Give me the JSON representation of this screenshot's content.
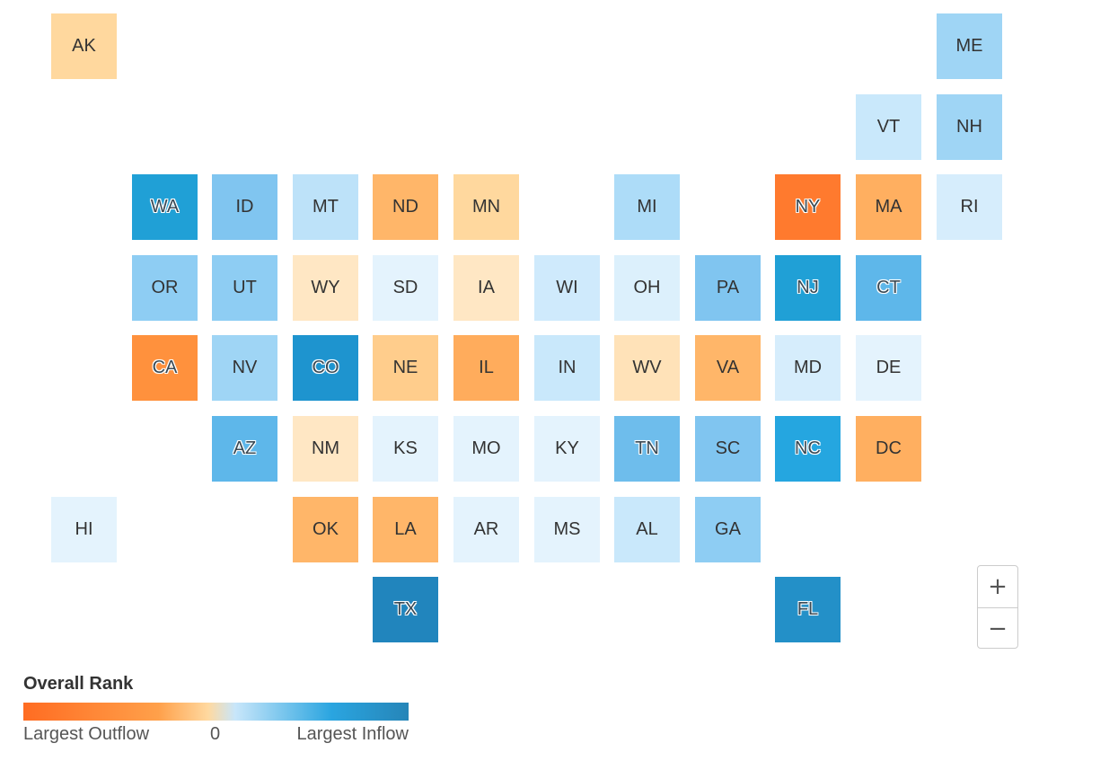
{
  "legend": {
    "title": "Overall Rank",
    "left_label": "Largest Outflow",
    "mid_label": "0",
    "right_label": "Largest Inflow",
    "gradient_colors": [
      "#ff6c22",
      "#ffa04a",
      "#ffd9a0",
      "#c8e6fa",
      "#2aa5e0",
      "#2685b8"
    ]
  },
  "zoom": {
    "in_label": "+",
    "out_label": "−"
  },
  "states": [
    {
      "abbr": "AK",
      "row": 0,
      "col": 0,
      "color": "#ffd89e",
      "dark": false
    },
    {
      "abbr": "ME",
      "row": 0,
      "col": 11,
      "color": "#9fd5f5",
      "dark": false
    },
    {
      "abbr": "VT",
      "row": 1,
      "col": 10,
      "color": "#c9e8fb",
      "dark": false
    },
    {
      "abbr": "NH",
      "row": 1,
      "col": 11,
      "color": "#9fd5f5",
      "dark": false
    },
    {
      "abbr": "WA",
      "row": 2,
      "col": 1,
      "color": "#20a0d6",
      "dark": true
    },
    {
      "abbr": "ID",
      "row": 2,
      "col": 2,
      "color": "#80c5f0",
      "dark": false
    },
    {
      "abbr": "MT",
      "row": 2,
      "col": 3,
      "color": "#bde2f9",
      "dark": false
    },
    {
      "abbr": "ND",
      "row": 2,
      "col": 4,
      "color": "#ffb669",
      "dark": false
    },
    {
      "abbr": "MN",
      "row": 2,
      "col": 5,
      "color": "#ffd89e",
      "dark": false
    },
    {
      "abbr": "MI",
      "row": 2,
      "col": 7,
      "color": "#addcf8",
      "dark": false
    },
    {
      "abbr": "NY",
      "row": 2,
      "col": 9,
      "color": "#ff7a2e",
      "dark": true
    },
    {
      "abbr": "MA",
      "row": 2,
      "col": 10,
      "color": "#ffaf60",
      "dark": false
    },
    {
      "abbr": "RI",
      "row": 2,
      "col": 11,
      "color": "#d6edfc",
      "dark": false
    },
    {
      "abbr": "OR",
      "row": 3,
      "col": 1,
      "color": "#8ecdf3",
      "dark": false
    },
    {
      "abbr": "UT",
      "row": 3,
      "col": 2,
      "color": "#8ecdf3",
      "dark": false
    },
    {
      "abbr": "WY",
      "row": 3,
      "col": 3,
      "color": "#ffe7c4",
      "dark": false
    },
    {
      "abbr": "SD",
      "row": 3,
      "col": 4,
      "color": "#e4f3fd",
      "dark": false
    },
    {
      "abbr": "IA",
      "row": 3,
      "col": 5,
      "color": "#ffe7c4",
      "dark": false
    },
    {
      "abbr": "WI",
      "row": 3,
      "col": 6,
      "color": "#cfeafc",
      "dark": false
    },
    {
      "abbr": "OH",
      "row": 3,
      "col": 7,
      "color": "#dcf0fc",
      "dark": false
    },
    {
      "abbr": "PA",
      "row": 3,
      "col": 8,
      "color": "#80c5f0",
      "dark": false
    },
    {
      "abbr": "NJ",
      "row": 3,
      "col": 9,
      "color": "#20a0d6",
      "dark": true
    },
    {
      "abbr": "CT",
      "row": 3,
      "col": 10,
      "color": "#5eb7ea",
      "dark": true
    },
    {
      "abbr": "CA",
      "row": 4,
      "col": 1,
      "color": "#ff913d",
      "dark": true
    },
    {
      "abbr": "NV",
      "row": 4,
      "col": 2,
      "color": "#9fd5f5",
      "dark": false
    },
    {
      "abbr": "CO",
      "row": 4,
      "col": 3,
      "color": "#1e94cf",
      "dark": true
    },
    {
      "abbr": "NE",
      "row": 4,
      "col": 4,
      "color": "#ffcd8c",
      "dark": false
    },
    {
      "abbr": "IL",
      "row": 4,
      "col": 5,
      "color": "#ffac5c",
      "dark": false
    },
    {
      "abbr": "IN",
      "row": 4,
      "col": 6,
      "color": "#c9e8fb",
      "dark": false
    },
    {
      "abbr": "WV",
      "row": 4,
      "col": 7,
      "color": "#ffe2b8",
      "dark": false
    },
    {
      "abbr": "VA",
      "row": 4,
      "col": 8,
      "color": "#ffb669",
      "dark": false
    },
    {
      "abbr": "MD",
      "row": 4,
      "col": 9,
      "color": "#d6edfc",
      "dark": false
    },
    {
      "abbr": "DE",
      "row": 4,
      "col": 10,
      "color": "#e4f3fd",
      "dark": false
    },
    {
      "abbr": "AZ",
      "row": 5,
      "col": 2,
      "color": "#5eb7ea",
      "dark": true
    },
    {
      "abbr": "NM",
      "row": 5,
      "col": 3,
      "color": "#ffe7c4",
      "dark": false
    },
    {
      "abbr": "KS",
      "row": 5,
      "col": 4,
      "color": "#e4f3fd",
      "dark": false
    },
    {
      "abbr": "MO",
      "row": 5,
      "col": 5,
      "color": "#e4f3fd",
      "dark": false
    },
    {
      "abbr": "KY",
      "row": 5,
      "col": 6,
      "color": "#e4f3fd",
      "dark": false
    },
    {
      "abbr": "TN",
      "row": 5,
      "col": 7,
      "color": "#6ebdec",
      "dark": true
    },
    {
      "abbr": "SC",
      "row": 5,
      "col": 8,
      "color": "#80c5f0",
      "dark": false
    },
    {
      "abbr": "NC",
      "row": 5,
      "col": 9,
      "color": "#25a6e0",
      "dark": true
    },
    {
      "abbr": "DC",
      "row": 5,
      "col": 10,
      "color": "#ffaf60",
      "dark": false
    },
    {
      "abbr": "HI",
      "row": 6,
      "col": 0,
      "color": "#e4f3fd",
      "dark": false
    },
    {
      "abbr": "OK",
      "row": 6,
      "col": 3,
      "color": "#ffb669",
      "dark": false
    },
    {
      "abbr": "LA",
      "row": 6,
      "col": 4,
      "color": "#ffb669",
      "dark": false
    },
    {
      "abbr": "AR",
      "row": 6,
      "col": 5,
      "color": "#e4f3fd",
      "dark": false
    },
    {
      "abbr": "MS",
      "row": 6,
      "col": 6,
      "color": "#e4f3fd",
      "dark": false
    },
    {
      "abbr": "AL",
      "row": 6,
      "col": 7,
      "color": "#c9e8fb",
      "dark": false
    },
    {
      "abbr": "GA",
      "row": 6,
      "col": 8,
      "color": "#8ecdf3",
      "dark": false
    },
    {
      "abbr": "TX",
      "row": 7,
      "col": 4,
      "color": "#2185bd",
      "dark": true
    },
    {
      "abbr": "FL",
      "row": 7,
      "col": 9,
      "color": "#2390c8",
      "dark": true
    }
  ]
}
